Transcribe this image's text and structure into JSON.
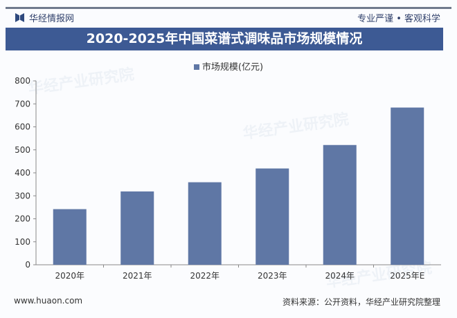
{
  "header": {
    "brand": "华经情报网",
    "slogan": "专业严谨 • 客观科学"
  },
  "footer": {
    "website": "www.huaon.com",
    "source": "资料来源：公开资料，华经产业研究院整理"
  },
  "watermark": "华经产业研究院",
  "colors": {
    "bar": "#5f77a5",
    "title_bg": "#3d5a94"
  },
  "chart_data": {
    "type": "bar",
    "title": "2020-2025年中国菜谱式调味品市场规模情况",
    "legend": [
      "市场规模(亿元)"
    ],
    "legend_position": "top-center",
    "categories": [
      "2020年",
      "2021年",
      "2022年",
      "2023年",
      "2024年",
      "2025年E"
    ],
    "series": [
      {
        "name": "市场规模(亿元)",
        "values": [
          242,
          319,
          359,
          419,
          521,
          684
        ]
      }
    ],
    "ylim": [
      0,
      800
    ],
    "yticks": [
      "0",
      "100",
      "200",
      "300",
      "400",
      "500",
      "600",
      "700",
      "800"
    ],
    "xlabel": "",
    "ylabel": "",
    "grid": false
  }
}
